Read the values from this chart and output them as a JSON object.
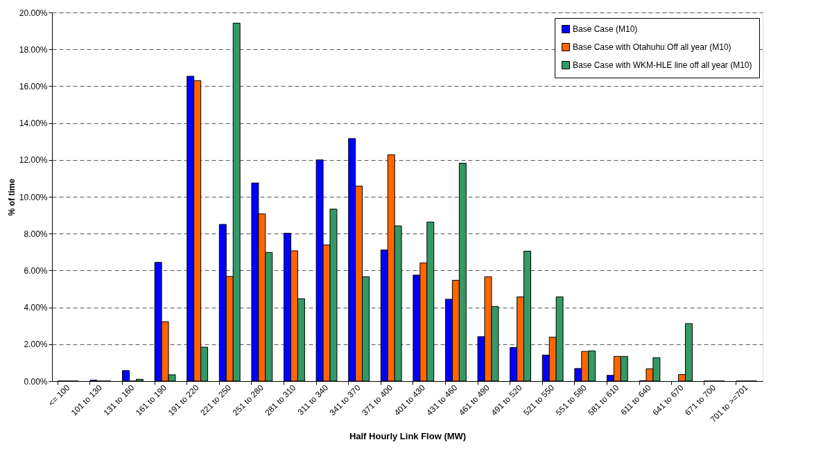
{
  "chart_data": {
    "type": "bar",
    "xlabel": "Half Hourly Link Flow (MW)",
    "ylabel": "% of time",
    "categories": [
      "<= 100",
      "101 to 130",
      "131 to 160",
      "161 to 190",
      "191 to 220",
      "221 to 250",
      "251 to 280",
      "281 to 310",
      "311 to 340",
      "341 to 370",
      "371 to 400",
      "401 to 430",
      "431 to 460",
      "461 to 490",
      "491 to 520",
      "521 to 550",
      "551 to 580",
      "581 to 610",
      "611 to 640",
      "641 to 670",
      "671 to 700",
      "701 to >=701"
    ],
    "series": [
      {
        "name": "Base Case (M10)",
        "color": "#0000ff",
        "values": [
          0,
          0.05,
          0.57,
          6.44,
          16.54,
          8.5,
          10.75,
          8.02,
          12.0,
          13.16,
          7.11,
          5.75,
          4.44,
          2.41,
          1.82,
          1.41,
          0.68,
          0.31,
          0.02,
          null,
          0,
          0
        ]
      },
      {
        "name": "Base Case with Otahuhu Off all year (M10)",
        "color": "#ff6600",
        "values": [
          0,
          0,
          0,
          3.22,
          16.3,
          5.68,
          9.07,
          7.07,
          7.39,
          10.58,
          12.28,
          6.41,
          5.47,
          5.66,
          4.57,
          2.38,
          1.61,
          1.34,
          0.67,
          0.36,
          0,
          0
        ]
      },
      {
        "name": "Base Case with WKM-HLE line off all year (M10)",
        "color": "#339966",
        "values": [
          0,
          0,
          0.1,
          0.34,
          1.84,
          19.42,
          6.98,
          4.47,
          9.33,
          5.66,
          8.42,
          8.63,
          11.82,
          4.05,
          7.05,
          4.57,
          1.64,
          1.34,
          1.27,
          3.12,
          0,
          0
        ]
      }
    ],
    "ylim": [
      0,
      20
    ],
    "yticks": [
      {
        "value": 0,
        "label": "0.00%"
      },
      {
        "value": 2,
        "label": "2.00%"
      },
      {
        "value": 4,
        "label": "4.00%"
      },
      {
        "value": 6,
        "label": "6.00%"
      },
      {
        "value": 8,
        "label": "8.00%"
      },
      {
        "value": 10,
        "label": "10.00%"
      },
      {
        "value": 12,
        "label": "12.00%"
      },
      {
        "value": 14,
        "label": "14.00%"
      },
      {
        "value": 16,
        "label": "16.00%"
      },
      {
        "value": 18,
        "label": "18.00%"
      },
      {
        "value": 20,
        "label": "20.00%"
      }
    ],
    "grid": "y",
    "legend": "top right"
  }
}
